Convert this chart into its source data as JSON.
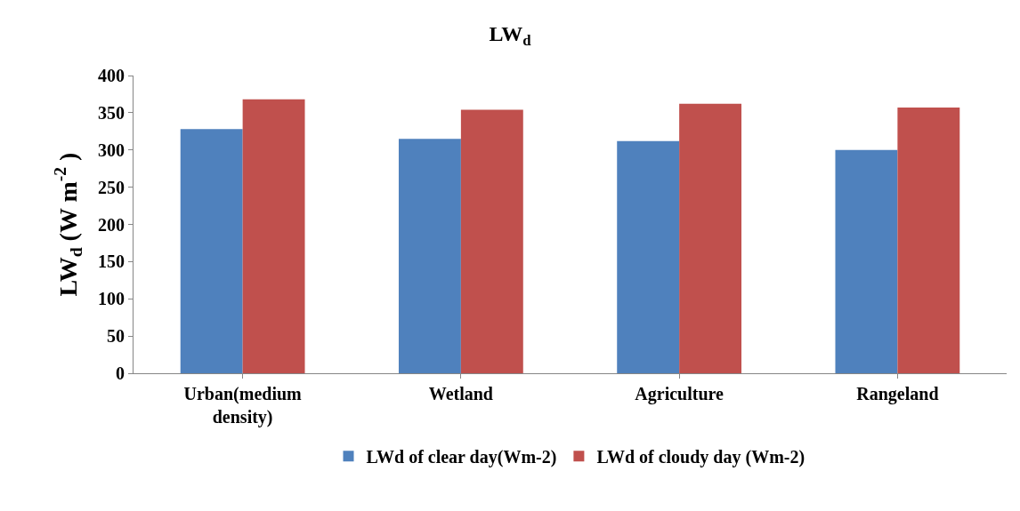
{
  "chart_data": {
    "type": "bar",
    "title": "LW$_{d}$",
    "ylabel": "LW$_{d}$ (W m$^{-2}$ )",
    "categories": [
      "Urban(medium density)",
      "Wetland",
      "Agriculture",
      "Rangeland"
    ],
    "series": [
      {
        "name": "LWd of clear day(Wm-2)",
        "color": "#4f81bd",
        "values": [
          328,
          315,
          312,
          300
        ]
      },
      {
        "name": "LWd of cloudy day (Wm-2)",
        "color": "#c0504d",
        "values": [
          368,
          354,
          362,
          357
        ]
      }
    ],
    "ylim": [
      0,
      400
    ],
    "yticks": [
      0,
      50,
      100,
      150,
      200,
      250,
      300,
      350,
      400
    ],
    "legend": "bottom"
  }
}
